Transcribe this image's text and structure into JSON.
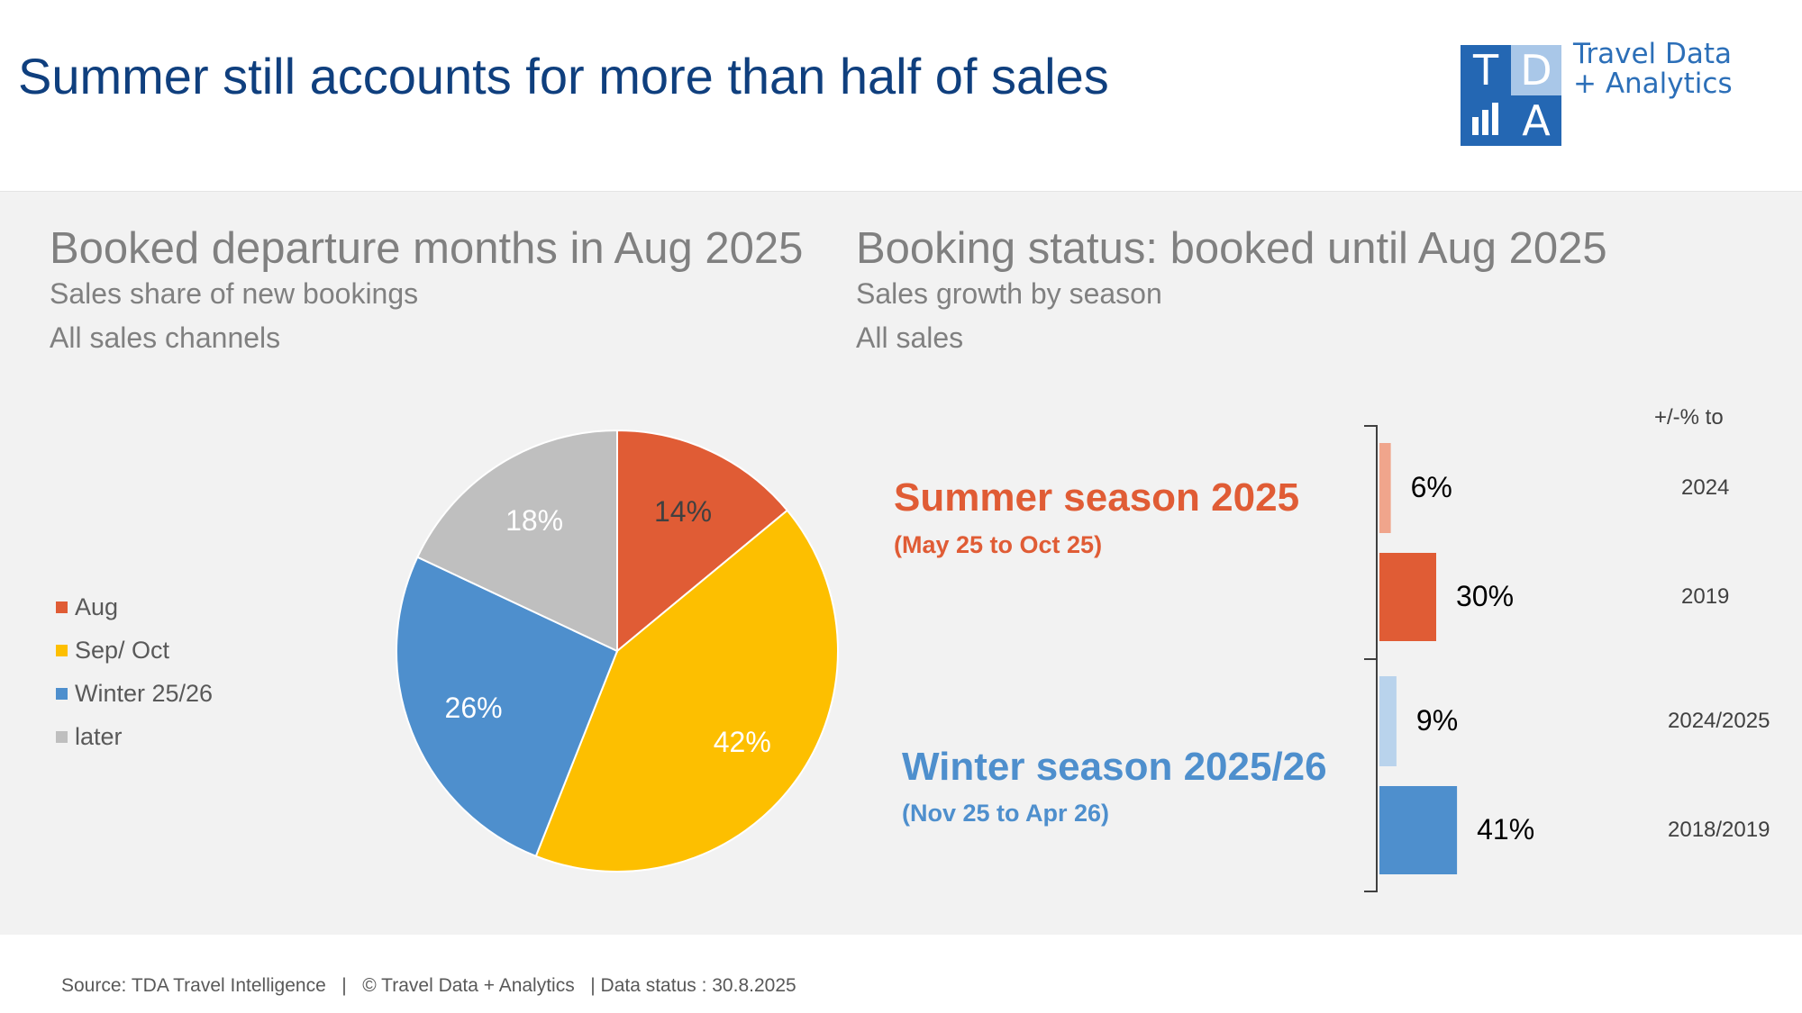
{
  "page": {
    "title": "Summer still accounts for more than half of sales",
    "logo": {
      "letters": [
        "T",
        "D",
        "A"
      ],
      "line1": "Travel Data",
      "line2": "+ Analytics"
    },
    "footer": {
      "source": "Source: TDA Travel Intelligence",
      "sep1": "   |   ",
      "copyright": "© Travel Data + Analytics",
      "sep2": "   | ",
      "status": "Data status : 30.8.2025"
    }
  },
  "left_panel": {
    "title": "Booked departure months in Aug 2025",
    "subtitle1": "Sales share of new bookings",
    "subtitle2": "All sales channels"
  },
  "right_panel": {
    "title": "Booking status: booked until Aug 2025",
    "subtitle1": "Sales growth by season",
    "subtitle2": "All sales",
    "comparison_header": "+/-% to",
    "summer": {
      "title": "Summer season 2025",
      "range": "(May 25 to Oct 25)"
    },
    "winter": {
      "title": "Winter season 2025/26",
      "range": "(Nov 25 to Apr 26)"
    }
  },
  "colors": {
    "aug": "#e05c35",
    "sep_oct": "#fdbf00",
    "winter": "#4e8fcd",
    "later": "#bfbfbf",
    "summer_light": "#f0a58c",
    "summer_dark": "#e05c35",
    "winter_light": "#b9d3ec",
    "winter_dark": "#4e8fcd",
    "title_blue": "#0f3f7e"
  },
  "chart_data": [
    {
      "type": "pie",
      "legend_position": "left",
      "slices": [
        {
          "label": "Aug",
          "value": 14,
          "display": "14%",
          "color": "#e05c35"
        },
        {
          "label": "Sep/ Oct",
          "value": 42,
          "display": "42%",
          "color": "#fdbf00"
        },
        {
          "label": "Winter 25/26",
          "value": 26,
          "display": "26%",
          "color": "#4e8fcd"
        },
        {
          "label": "later",
          "value": 18,
          "display": "18%",
          "color": "#bfbfbf"
        }
      ]
    },
    {
      "type": "bar",
      "orientation": "horizontal",
      "xlim": [
        0,
        50
      ],
      "groups": [
        {
          "name": "Summer season 2025",
          "range": "(May 25 to Oct 25)",
          "bars": [
            {
              "category": "2024",
              "value": 6,
              "display": "6%",
              "color": "#f0a58c"
            },
            {
              "category": "2019",
              "value": 30,
              "display": "30%",
              "color": "#e05c35"
            }
          ]
        },
        {
          "name": "Winter season 2025/26",
          "range": "(Nov 25 to Apr 26)",
          "bars": [
            {
              "category": "2024/2025",
              "value": 9,
              "display": "9%",
              "color": "#b9d3ec"
            },
            {
              "category": "2018/2019",
              "value": 41,
              "display": "41%",
              "color": "#4e8fcd"
            }
          ]
        }
      ]
    }
  ]
}
